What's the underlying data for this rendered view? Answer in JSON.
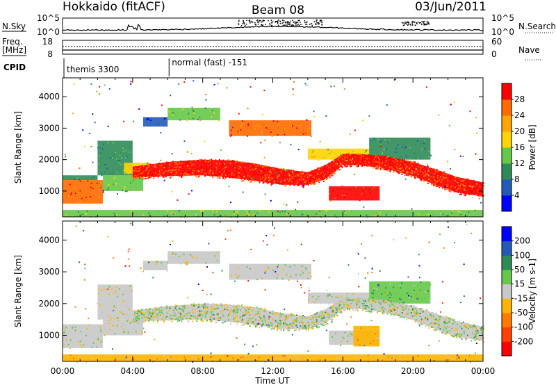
{
  "header": {
    "station": "Hokkaido (fitACF)",
    "beam": "Beam 08",
    "date": "03/Jun/2011"
  },
  "top_panels": {
    "nsky_label": "N.Sky",
    "nsky_ticks": [
      "10^5",
      "10^0"
    ],
    "nsearch_label": "N.Search",
    "nsearch_ticks": [
      "10^5",
      "10^0"
    ],
    "freq_label": "Freq.",
    "freq_unit": "[MHz]",
    "freq_ticks": [
      "18",
      "8"
    ],
    "nave_label": "Nave",
    "nave_ticks": [
      "60",
      "0"
    ],
    "cpid_label": "CPID",
    "cpid_modes": [
      {
        "name": "themis 3300",
        "start_hour": 0
      },
      {
        "name": "normal (fast) -151",
        "start_hour": 6
      }
    ]
  },
  "chart_data": [
    {
      "type": "heatmap",
      "name": "Power",
      "xlabel": "Time UT",
      "ylabel": "Slant Range [km]",
      "xlim": [
        0,
        24
      ],
      "ylim": [
        180,
        4600
      ],
      "y_ticks": [
        1000,
        2000,
        3000,
        4000
      ],
      "colorbar": {
        "label": "Power [dB]",
        "tick_labels": [
          "4",
          "8",
          "12",
          "16",
          "20",
          "24",
          "28"
        ],
        "colors": [
          "#0000ff",
          "#225ab8",
          "#2e8b57",
          "#66c848",
          "#ffd400",
          "#ffa500",
          "#ff6a00",
          "#ff0000"
        ]
      },
      "regions": [
        {
          "t0": 0.0,
          "t1": 2.3,
          "r0": 600,
          "r1": 1350,
          "level": 6
        },
        {
          "t0": 0.0,
          "t1": 2.0,
          "r0": 1350,
          "r1": 1500,
          "level": 2
        },
        {
          "t0": 2.3,
          "t1": 4.6,
          "r0": 1000,
          "r1": 1500,
          "level": 3
        },
        {
          "t0": 2.0,
          "t1": 4.0,
          "r0": 1500,
          "r1": 2600,
          "level": 2
        },
        {
          "t0": 3.5,
          "t1": 5.0,
          "r0": 1550,
          "r1": 1900,
          "level": 4
        },
        {
          "t0": 4.6,
          "t1": 6.0,
          "r0": 3050,
          "r1": 3350,
          "level": 1
        },
        {
          "t0": 6.0,
          "t1": 9.0,
          "r0": 3250,
          "r1": 3650,
          "level": 3
        },
        {
          "t0": 9.5,
          "t1": 14.2,
          "r0": 2750,
          "r1": 3250,
          "level": 6
        },
        {
          "t0": 14.0,
          "t1": 17.5,
          "r0": 2000,
          "r1": 2350,
          "level": 4
        },
        {
          "t0": 15.2,
          "t1": 18.1,
          "r0": 700,
          "r1": 1150,
          "level": 7
        },
        {
          "t0": 17.5,
          "t1": 21.0,
          "r0": 2000,
          "r1": 2700,
          "level": 2
        },
        {
          "t0": 0.0,
          "t1": 24.0,
          "r0": 180,
          "r1": 400,
          "level": 3
        }
      ],
      "bands": [
        {
          "x": [
            4.0,
            6.0,
            8.0,
            9.5,
            11.0,
            12.5,
            14.0,
            15.0,
            16.0,
            17.0,
            18.5,
            20.0,
            21.5,
            22.5,
            24.0
          ],
          "r": [
            1600,
            1700,
            1750,
            1700,
            1600,
            1450,
            1400,
            1600,
            2000,
            2000,
            1900,
            1700,
            1400,
            1200,
            1050
          ],
          "w": [
            350,
            450,
            500,
            550,
            550,
            500,
            400,
            450,
            350,
            350,
            400,
            450,
            500,
            500,
            450
          ],
          "level": 7
        }
      ]
    },
    {
      "type": "heatmap",
      "name": "Velocity",
      "xlabel": "Time UT",
      "ylabel": "Slant Range [km]",
      "xlim": [
        0,
        24
      ],
      "ylim": [
        180,
        4600
      ],
      "y_ticks": [
        1000,
        2000,
        3000,
        4000
      ],
      "colorbar": {
        "label": "Velocity [m s-1]",
        "tick_labels": [
          "200",
          "100",
          "50",
          "15",
          "-15",
          "-50",
          "-100",
          "-200"
        ],
        "colors": [
          "#0000ff",
          "#225ab8",
          "#2e8b57",
          "#66c848",
          "#c8c8c8",
          "#ffb400",
          "#ff7800",
          "#ff4000",
          "#ff0000"
        ]
      },
      "regions": [
        {
          "t0": 0.0,
          "t1": 2.3,
          "r0": 600,
          "r1": 1350,
          "level": 4
        },
        {
          "t0": 2.3,
          "t1": 4.6,
          "r0": 1000,
          "r1": 1500,
          "level": 4
        },
        {
          "t0": 2.0,
          "t1": 4.0,
          "r0": 1500,
          "r1": 2600,
          "level": 4
        },
        {
          "t0": 4.6,
          "t1": 6.0,
          "r0": 3050,
          "r1": 3350,
          "level": 4
        },
        {
          "t0": 6.0,
          "t1": 9.0,
          "r0": 3250,
          "r1": 3650,
          "level": 4
        },
        {
          "t0": 9.5,
          "t1": 14.2,
          "r0": 2750,
          "r1": 3250,
          "level": 4
        },
        {
          "t0": 14.0,
          "t1": 17.5,
          "r0": 2000,
          "r1": 2350,
          "level": 4
        },
        {
          "t0": 15.2,
          "t1": 18.1,
          "r0": 700,
          "r1": 1150,
          "level": 4
        },
        {
          "t0": 16.6,
          "t1": 18.1,
          "r0": 650,
          "r1": 1300,
          "level": 5
        },
        {
          "t0": 17.5,
          "t1": 21.0,
          "r0": 2000,
          "r1": 2700,
          "level": 3
        },
        {
          "t0": 0.0,
          "t1": 24.0,
          "r0": 180,
          "r1": 400,
          "level": 5
        }
      ],
      "bands": [
        {
          "x": [
            4.0,
            6.0,
            8.0,
            9.5,
            11.0,
            12.5,
            14.0,
            15.0,
            16.0,
            17.0,
            18.5,
            20.0,
            21.5,
            22.5,
            24.0
          ],
          "r": [
            1600,
            1700,
            1750,
            1700,
            1600,
            1450,
            1400,
            1600,
            2000,
            2000,
            1900,
            1700,
            1400,
            1200,
            1050
          ],
          "w": [
            350,
            450,
            500,
            550,
            550,
            500,
            400,
            450,
            350,
            350,
            400,
            450,
            500,
            500,
            450
          ],
          "level": 4
        }
      ]
    }
  ],
  "x_axis": {
    "label": "Time UT",
    "tick_labels": [
      "00:00",
      "04:00",
      "08:00",
      "12:00",
      "16:00",
      "20:00",
      "00:00"
    ]
  }
}
